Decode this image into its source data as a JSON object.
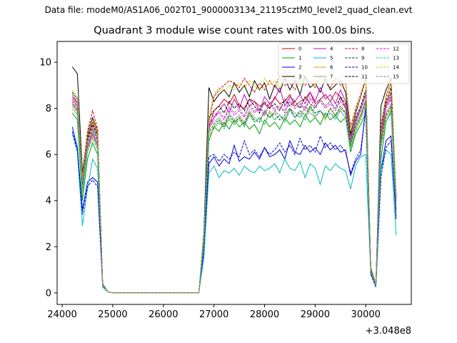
{
  "figure": {
    "suptitle": "Data file: modeM0/AS1A06_002T01_9000003134_21195cztM0_level2_quad_clean.evt",
    "title": "Quadrant 3 module wise count rates with 100.0s bins.",
    "x_offset_label": "+3.048e8"
  },
  "chart_data": {
    "type": "line",
    "title": "Quadrant 3 module wise count rates with 100.0s bins.",
    "xlabel": "",
    "ylabel": "",
    "x_offset": 304800000,
    "xlim": [
      23900,
      30900
    ],
    "ylim": [
      -0.5,
      10.9
    ],
    "grid": false,
    "legend_position": "top-right",
    "x_ticks": [
      24000,
      25000,
      26000,
      27000,
      28000,
      29000,
      30000
    ],
    "y_ticks": [
      0,
      2,
      4,
      6,
      8,
      10
    ],
    "x": [
      24200,
      24300,
      24400,
      24500,
      24600,
      24700,
      24800,
      24900,
      25000,
      25100,
      25200,
      25300,
      25400,
      25500,
      25600,
      25700,
      25800,
      25900,
      26000,
      26100,
      26200,
      26300,
      26400,
      26500,
      26600,
      26700,
      26800,
      26900,
      27000,
      27100,
      27200,
      27300,
      27400,
      27500,
      27600,
      27700,
      27800,
      27900,
      28000,
      28100,
      28200,
      28300,
      28400,
      28500,
      28600,
      28700,
      28800,
      28900,
      29000,
      29100,
      29200,
      29300,
      29400,
      29500,
      29600,
      29700,
      29800,
      29900,
      30000,
      30100,
      30200,
      30300,
      30400,
      30500,
      30600
    ],
    "series": [
      {
        "name": "0",
        "color": "#cc0000",
        "dash": "solid",
        "values": [
          8.2,
          7.9,
          4.6,
          6.8,
          7.4,
          6.9,
          0.4,
          0.05,
          0,
          0,
          0,
          0,
          0,
          0,
          0,
          0,
          0,
          0,
          0,
          0,
          0,
          0,
          0,
          0,
          0,
          0,
          2.3,
          7.2,
          7.9,
          8.1,
          8.4,
          8.2,
          8.6,
          8.1,
          8.0,
          8.4,
          8.3,
          8.1,
          8.2,
          8.0,
          8.5,
          8.2,
          8.3,
          8.6,
          8.1,
          8.3,
          8.4,
          8.7,
          8.2,
          8.4,
          8.6,
          8.3,
          8.7,
          8.5,
          8.0,
          6.8,
          7.5,
          8.0,
          8.6,
          1.1,
          0.4,
          6.5,
          8.2,
          8.7,
          4.0
        ]
      },
      {
        "name": "1",
        "color": "#00a000",
        "dash": "solid",
        "values": [
          7.8,
          7.5,
          4.0,
          5.8,
          6.5,
          6.0,
          0.3,
          0.05,
          0,
          0,
          0,
          0,
          0,
          0,
          0,
          0,
          0,
          0,
          0,
          0,
          0,
          0,
          0,
          0,
          0,
          0,
          2.1,
          6.6,
          7.2,
          7.0,
          7.4,
          7.1,
          7.5,
          7.2,
          7.4,
          7.1,
          7.3,
          6.9,
          7.5,
          7.2,
          7.4,
          7.1,
          7.6,
          7.3,
          7.5,
          7.2,
          7.7,
          7.4,
          7.6,
          7.3,
          7.8,
          7.5,
          7.7,
          7.4,
          7.6,
          6.1,
          6.9,
          7.3,
          7.8,
          0.8,
          0.3,
          5.8,
          7.4,
          7.9,
          3.6
        ]
      },
      {
        "name": "2",
        "color": "#0000dd",
        "dash": "solid",
        "values": [
          7.2,
          6.3,
          3.6,
          4.8,
          5.0,
          4.8,
          0.3,
          0.05,
          0,
          0,
          0,
          0,
          0,
          0,
          0,
          0,
          0,
          0,
          0,
          0,
          0,
          0,
          0,
          0,
          0,
          0,
          1.8,
          5.6,
          5.9,
          5.5,
          5.8,
          5.6,
          6.4,
          5.7,
          5.9,
          5.8,
          6.1,
          5.8,
          6.3,
          5.9,
          6.0,
          6.2,
          5.8,
          6.6,
          6.1,
          6.0,
          6.4,
          6.1,
          6.3,
          6.0,
          6.5,
          6.2,
          6.4,
          6.1,
          6.2,
          5.1,
          5.7,
          6.0,
          8.1,
          0.9,
          0.3,
          5.3,
          6.6,
          6.8,
          3.2
        ]
      },
      {
        "name": "3",
        "color": "#000000",
        "dash": "solid",
        "values": [
          9.8,
          9.5,
          5.2,
          6.9,
          7.6,
          7.0,
          0.4,
          0.05,
          0,
          0,
          0,
          0,
          0,
          0,
          0,
          0,
          0,
          0,
          0,
          0,
          0,
          0,
          0,
          0,
          0,
          0,
          2.6,
          8.9,
          8.3,
          8.6,
          8.8,
          8.5,
          9.1,
          8.7,
          9.0,
          8.5,
          9.2,
          8.8,
          9.1,
          8.4,
          9.0,
          8.7,
          9.3,
          8.8,
          9.2,
          8.6,
          9.4,
          8.9,
          9.1,
          8.7,
          9.3,
          8.8,
          9.0,
          9.2,
          8.7,
          6.9,
          7.8,
          8.5,
          9.3,
          1.0,
          0.3,
          8.1,
          8.8,
          9.3,
          4.1
        ]
      },
      {
        "name": "4",
        "color": "#cc00cc",
        "dash": "solid",
        "values": [
          8.4,
          8.1,
          4.5,
          6.3,
          6.9,
          6.4,
          0.35,
          0.05,
          0,
          0,
          0,
          0,
          0,
          0,
          0,
          0,
          0,
          0,
          0,
          0,
          0,
          0,
          0,
          0,
          0,
          0,
          2.2,
          7.1,
          7.6,
          7.9,
          8.2,
          7.8,
          8.4,
          8.0,
          8.6,
          8.1,
          8.3,
          7.9,
          8.5,
          8.2,
          8.4,
          8.9,
          8.1,
          8.5,
          8.3,
          8.6,
          8.2,
          8.7,
          8.3,
          8.9,
          8.4,
          8.6,
          8.2,
          8.8,
          8.3,
          6.6,
          7.4,
          8.0,
          8.6,
          1.0,
          0.35,
          6.9,
          8.1,
          8.5,
          4.3
        ]
      },
      {
        "name": "5",
        "color": "#00bbbb",
        "dash": "solid",
        "values": [
          6.9,
          6.1,
          2.9,
          4.5,
          5.8,
          5.4,
          0.25,
          0.05,
          0,
          0,
          0,
          0,
          0,
          0,
          0,
          0,
          0,
          0,
          0,
          0,
          0,
          0,
          0,
          0,
          0,
          0,
          1.5,
          5.2,
          5.5,
          5.0,
          5.3,
          5.2,
          5.4,
          5.1,
          5.5,
          5.3,
          5.2,
          5.5,
          5.3,
          5.4,
          5.6,
          5.2,
          5.8,
          5.4,
          5.3,
          5.7,
          5.0,
          5.6,
          5.4,
          4.7,
          5.5,
          5.3,
          5.6,
          5.4,
          5.3,
          4.5,
          5.5,
          5.9,
          6.0,
          0.8,
          0.25,
          5.3,
          6.2,
          6.0,
          2.5
        ]
      },
      {
        "name": "6",
        "color": "#ccaa00",
        "dash": "solid",
        "values": [
          8.0,
          7.7,
          4.3,
          6.2,
          6.8,
          6.3,
          0.35,
          0.05,
          0,
          0,
          0,
          0,
          0,
          0,
          0,
          0,
          0,
          0,
          0,
          0,
          0,
          0,
          0,
          0,
          0,
          0,
          2.2,
          6.8,
          7.1,
          7.4,
          7.2,
          7.5,
          7.3,
          7.6,
          7.2,
          7.8,
          7.4,
          7.6,
          7.3,
          7.9,
          7.5,
          7.7,
          7.4,
          8.0,
          7.6,
          7.8,
          7.5,
          8.1,
          7.6,
          7.9,
          7.5,
          8.0,
          7.7,
          7.9,
          7.6,
          6.3,
          7.1,
          7.6,
          8.2,
          0.9,
          0.3,
          6.4,
          7.6,
          8.0,
          3.7
        ]
      },
      {
        "name": "7",
        "color": "#999999",
        "dash": "solid",
        "values": [
          8.5,
          8.3,
          4.6,
          6.4,
          7.0,
          6.5,
          0.35,
          0.05,
          0,
          0,
          0,
          0,
          0,
          0,
          0,
          0,
          0,
          0,
          0,
          0,
          0,
          0,
          0,
          0,
          0,
          0,
          2.3,
          7.2,
          7.4,
          7.6,
          7.3,
          7.8,
          7.5,
          7.7,
          7.4,
          7.9,
          7.6,
          7.5,
          7.8,
          7.6,
          7.9,
          7.7,
          7.5,
          8.0,
          7.8,
          7.6,
          8.1,
          7.8,
          7.6,
          7.9,
          7.7,
          7.8,
          7.6,
          8.0,
          7.8,
          6.5,
          7.3,
          7.7,
          8.4,
          1.0,
          0.35,
          6.7,
          7.8,
          8.2,
          4.0
        ]
      },
      {
        "name": "8",
        "color": "#dd0000",
        "dash": "dashed",
        "values": [
          8.6,
          8.2,
          5.0,
          7.0,
          7.9,
          7.1,
          0.4,
          0.05,
          0,
          0,
          0,
          0,
          0,
          0,
          0,
          0,
          0,
          0,
          0,
          0,
          0,
          0,
          0,
          0,
          0,
          0,
          2.4,
          7.4,
          8.5,
          8.8,
          9.0,
          9.2,
          9.1,
          8.9,
          9.3,
          9.0,
          8.7,
          9.1,
          8.8,
          9.2,
          8.9,
          9.4,
          9.0,
          9.1,
          8.8,
          9.3,
          9.0,
          9.2,
          8.9,
          9.4,
          9.1,
          8.9,
          9.3,
          9.0,
          9.1,
          7.2,
          8.0,
          8.6,
          9.3,
          1.1,
          0.4,
          7.0,
          8.5,
          9.1,
          4.2
        ]
      },
      {
        "name": "9",
        "color": "#006600",
        "dash": "dashed",
        "values": [
          8.3,
          8.0,
          4.7,
          6.5,
          7.1,
          6.6,
          0.35,
          0.05,
          0,
          0,
          0,
          0,
          0,
          0,
          0,
          0,
          0,
          0,
          0,
          0,
          0,
          0,
          0,
          0,
          0,
          0,
          2.2,
          7.0,
          7.3,
          7.5,
          7.2,
          7.7,
          7.4,
          7.6,
          7.3,
          7.8,
          7.5,
          7.4,
          7.9,
          7.6,
          7.8,
          7.5,
          7.7,
          8.0,
          7.6,
          7.9,
          7.7,
          8.1,
          7.8,
          7.9,
          7.6,
          8.0,
          7.7,
          8.1,
          7.8,
          6.4,
          7.2,
          7.7,
          8.3,
          0.9,
          0.3,
          6.6,
          7.7,
          8.1,
          3.9
        ]
      },
      {
        "name": "10",
        "color": "#0000cc",
        "dash": "dashed",
        "values": [
          7.0,
          6.2,
          3.4,
          4.6,
          4.9,
          4.6,
          0.3,
          0.05,
          0,
          0,
          0,
          0,
          0,
          0,
          0,
          0,
          0,
          0,
          0,
          0,
          0,
          0,
          0,
          0,
          0,
          0,
          1.9,
          5.9,
          6.0,
          5.7,
          6.0,
          5.8,
          6.1,
          5.9,
          6.6,
          6.0,
          6.2,
          5.9,
          6.3,
          6.0,
          6.2,
          6.5,
          6.1,
          6.4,
          6.0,
          6.7,
          6.2,
          6.4,
          6.1,
          6.8,
          6.3,
          6.5,
          6.2,
          6.4,
          6.1,
          5.2,
          5.8,
          6.2,
          7.9,
          0.8,
          0.25,
          5.0,
          6.3,
          6.6,
          3.3
        ]
      },
      {
        "name": "11",
        "color": "#000000",
        "dash": "dashed",
        "values": [
          8.7,
          8.4,
          4.9,
          6.7,
          7.3,
          6.8,
          0.4,
          0.05,
          0,
          0,
          0,
          0,
          0,
          0,
          0,
          0,
          0,
          0,
          0,
          0,
          0,
          0,
          0,
          0,
          0,
          0,
          2.4,
          7.6,
          7.9,
          8.1,
          7.8,
          8.3,
          8.0,
          8.2,
          7.9,
          8.4,
          8.1,
          7.8,
          8.3,
          8.0,
          8.2,
          7.9,
          8.4,
          8.1,
          8.3,
          8.0,
          8.5,
          8.2,
          8.0,
          8.4,
          8.1,
          8.3,
          8.0,
          8.5,
          8.2,
          6.7,
          7.6,
          8.1,
          8.8,
          1.0,
          0.35,
          7.3,
          8.3,
          8.9,
          4.1
        ]
      },
      {
        "name": "12",
        "color": "#ee00ee",
        "dash": "dashed",
        "values": [
          8.5,
          8.2,
          4.8,
          6.6,
          7.2,
          6.7,
          0.35,
          0.05,
          0,
          0,
          0,
          0,
          0,
          0,
          0,
          0,
          0,
          0,
          0,
          0,
          0,
          0,
          0,
          0,
          0,
          0,
          2.3,
          7.3,
          7.6,
          7.8,
          7.5,
          8.0,
          7.7,
          7.9,
          7.6,
          8.1,
          7.8,
          8.0,
          7.7,
          8.2,
          7.9,
          8.1,
          7.8,
          8.3,
          8.0,
          8.2,
          7.9,
          8.4,
          8.1,
          8.3,
          8.0,
          8.2,
          7.9,
          8.3,
          8.0,
          6.6,
          7.4,
          7.9,
          8.6,
          1.0,
          0.3,
          6.9,
          8.0,
          8.4,
          4.0
        ]
      },
      {
        "name": "13",
        "color": "#00cccc",
        "dash": "dashed",
        "values": [
          8.1,
          7.8,
          4.4,
          6.1,
          6.7,
          6.2,
          0.3,
          0.05,
          0,
          0,
          0,
          0,
          0,
          0,
          0,
          0,
          0,
          0,
          0,
          0,
          0,
          0,
          0,
          0,
          0,
          0,
          2.1,
          6.9,
          7.2,
          7.4,
          7.1,
          7.6,
          7.3,
          7.5,
          7.2,
          7.7,
          7.4,
          7.6,
          7.3,
          7.8,
          7.5,
          7.7,
          7.4,
          7.9,
          7.6,
          7.8,
          7.5,
          8.0,
          7.7,
          7.9,
          7.6,
          7.8,
          7.5,
          7.9,
          7.6,
          6.2,
          7.0,
          7.5,
          8.1,
          0.9,
          0.3,
          6.3,
          7.4,
          7.8,
          3.8
        ]
      },
      {
        "name": "14",
        "color": "#cccc00",
        "dash": "dashed",
        "values": [
          8.8,
          8.5,
          5.0,
          6.9,
          7.5,
          7.0,
          0.4,
          0.05,
          0,
          0,
          0,
          0,
          0,
          0,
          0,
          0,
          0,
          0,
          0,
          0,
          0,
          0,
          0,
          0,
          0,
          0,
          2.5,
          7.7,
          8.6,
          8.9,
          8.7,
          9.0,
          8.8,
          9.1,
          8.9,
          9.2,
          9.0,
          8.8,
          9.3,
          9.0,
          9.2,
          8.9,
          9.4,
          9.1,
          9.3,
          9.0,
          9.5,
          9.2,
          9.0,
          9.4,
          9.1,
          9.3,
          9.0,
          9.5,
          9.2,
          7.0,
          7.9,
          8.5,
          9.2,
          1.1,
          0.4,
          7.3,
          8.6,
          9.2,
          4.3
        ]
      },
      {
        "name": "15",
        "color": "#888888",
        "dash": "dashed",
        "values": [
          8.6,
          8.3,
          4.8,
          6.6,
          7.2,
          6.7,
          0.35,
          0.05,
          0,
          0,
          0,
          0,
          0,
          0,
          0,
          0,
          0,
          0,
          0,
          0,
          0,
          0,
          0,
          0,
          0,
          0,
          2.3,
          7.4,
          7.7,
          7.9,
          7.6,
          8.1,
          7.8,
          8.0,
          7.7,
          8.2,
          7.9,
          8.1,
          7.8,
          8.3,
          8.0,
          8.2,
          7.9,
          8.4,
          8.1,
          8.3,
          8.0,
          8.5,
          8.2,
          8.4,
          8.1,
          8.3,
          8.0,
          8.4,
          8.1,
          6.7,
          7.5,
          8.0,
          8.7,
          1.0,
          0.35,
          7.1,
          8.2,
          8.6,
          4.0
        ]
      }
    ]
  }
}
